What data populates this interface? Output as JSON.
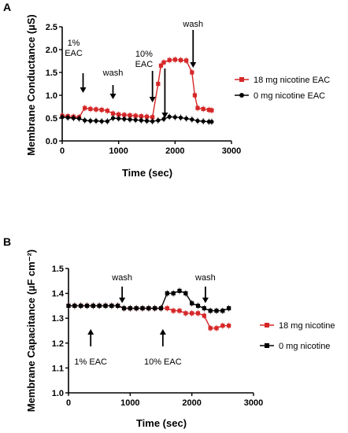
{
  "chart_data": [
    {
      "type": "line",
      "panel_label": "A",
      "xlabel": "Time (sec)",
      "ylabel": "Membrane Conductance (µS)",
      "xlim": [
        0,
        3000
      ],
      "ylim": [
        0,
        2.5
      ],
      "xticks": [
        0,
        1000,
        2000,
        3000
      ],
      "yticks": [
        0.0,
        0.5,
        1.0,
        1.5,
        2.0,
        2.5
      ],
      "xtick_labels": [
        "0",
        "1000",
        "2000",
        "3000"
      ],
      "ytick_labels": [
        "0.0",
        "0.5",
        "1.0",
        "1.5",
        "2.0",
        "2.5"
      ],
      "legend_position": "right",
      "annotations": [
        {
          "lines": [
            "1%",
            "EAC"
          ],
          "x": 370
        },
        {
          "lines": [
            "wash"
          ],
          "x": 900
        },
        {
          "lines": [
            "10%",
            "EAC"
          ],
          "x": 1600
        },
        {
          "lines": [
            ""
          ],
          "x": 1820
        },
        {
          "lines": [
            "wash"
          ],
          "x": 2320
        }
      ],
      "series": [
        {
          "name": "18 mg nicotine EAC",
          "color": "#d62728",
          "marker": "square",
          "x": [
            0,
            100,
            200,
            300,
            400,
            500,
            600,
            700,
            800,
            900,
            1000,
            1100,
            1200,
            1300,
            1400,
            1500,
            1600,
            1700,
            1750,
            1800,
            1900,
            2000,
            2100,
            2200,
            2300,
            2350,
            2400,
            2500,
            2600,
            2650
          ],
          "y": [
            0.55,
            0.54,
            0.53,
            0.52,
            0.72,
            0.7,
            0.69,
            0.68,
            0.66,
            0.6,
            0.58,
            0.57,
            0.56,
            0.55,
            0.54,
            0.53,
            0.52,
            1.25,
            1.65,
            1.72,
            1.77,
            1.78,
            1.77,
            1.76,
            1.5,
            1.0,
            0.72,
            0.7,
            0.68,
            0.67
          ]
        },
        {
          "name": "0 mg nicotine EAC",
          "color": "#000000",
          "marker": "circle",
          "x": [
            0,
            100,
            200,
            300,
            400,
            500,
            600,
            700,
            800,
            900,
            1000,
            1100,
            1200,
            1300,
            1400,
            1500,
            1600,
            1700,
            1800,
            1900,
            2000,
            2100,
            2200,
            2300,
            2400,
            2500,
            2600,
            2650
          ],
          "y": [
            0.52,
            0.51,
            0.5,
            0.49,
            0.45,
            0.44,
            0.44,
            0.43,
            0.43,
            0.5,
            0.49,
            0.48,
            0.47,
            0.46,
            0.45,
            0.44,
            0.43,
            0.45,
            0.48,
            0.53,
            0.52,
            0.51,
            0.49,
            0.47,
            0.44,
            0.43,
            0.42,
            0.42
          ]
        }
      ]
    },
    {
      "type": "line",
      "panel_label": "B",
      "xlabel": "Time (sec)",
      "ylabel": "Membrane Capacitance (µF cm⁻²)",
      "xlim": [
        0,
        3000
      ],
      "ylim": [
        1.0,
        1.5
      ],
      "xticks": [
        0,
        1000,
        2000,
        3000
      ],
      "yticks": [
        1.0,
        1.1,
        1.2,
        1.3,
        1.4,
        1.5
      ],
      "xtick_labels": [
        "0",
        "1000",
        "2000",
        "3000"
      ],
      "ytick_labels": [
        "1.0",
        "1.1",
        "1.2",
        "1.3",
        "1.4",
        "1.5"
      ],
      "legend_position": "right",
      "annotations": [
        {
          "lines": [
            "wash"
          ],
          "x": 870,
          "dir": "down"
        },
        {
          "lines": [
            "wash"
          ],
          "x": 2220,
          "dir": "down"
        },
        {
          "lines": [
            "1% EAC"
          ],
          "x": 360,
          "dir": "up"
        },
        {
          "lines": [
            "10% EAC"
          ],
          "x": 1530,
          "dir": "up"
        }
      ],
      "series": [
        {
          "name": "18 mg nicotine",
          "color": "#d62728",
          "marker": "square",
          "x": [
            0,
            100,
            200,
            300,
            400,
            500,
            600,
            700,
            800,
            900,
            1000,
            1100,
            1200,
            1300,
            1400,
            1500,
            1600,
            1700,
            1800,
            1900,
            2000,
            2100,
            2200,
            2300,
            2400,
            2500,
            2600
          ],
          "y": [
            1.35,
            1.35,
            1.35,
            1.35,
            1.35,
            1.35,
            1.35,
            1.35,
            1.35,
            1.34,
            1.34,
            1.34,
            1.34,
            1.34,
            1.34,
            1.34,
            1.34,
            1.33,
            1.33,
            1.32,
            1.32,
            1.32,
            1.31,
            1.26,
            1.26,
            1.27,
            1.27
          ]
        },
        {
          "name": "0 mg nicotine",
          "color": "#000000",
          "marker": "square",
          "x": [
            0,
            100,
            200,
            300,
            400,
            500,
            600,
            700,
            800,
            900,
            1000,
            1100,
            1200,
            1300,
            1400,
            1500,
            1600,
            1700,
            1800,
            1900,
            2000,
            2100,
            2200,
            2300,
            2400,
            2500,
            2600
          ],
          "y": [
            1.35,
            1.35,
            1.35,
            1.35,
            1.35,
            1.35,
            1.35,
            1.35,
            1.35,
            1.34,
            1.34,
            1.34,
            1.34,
            1.34,
            1.34,
            1.34,
            1.4,
            1.4,
            1.41,
            1.4,
            1.36,
            1.35,
            1.34,
            1.33,
            1.33,
            1.33,
            1.34
          ]
        }
      ]
    }
  ]
}
